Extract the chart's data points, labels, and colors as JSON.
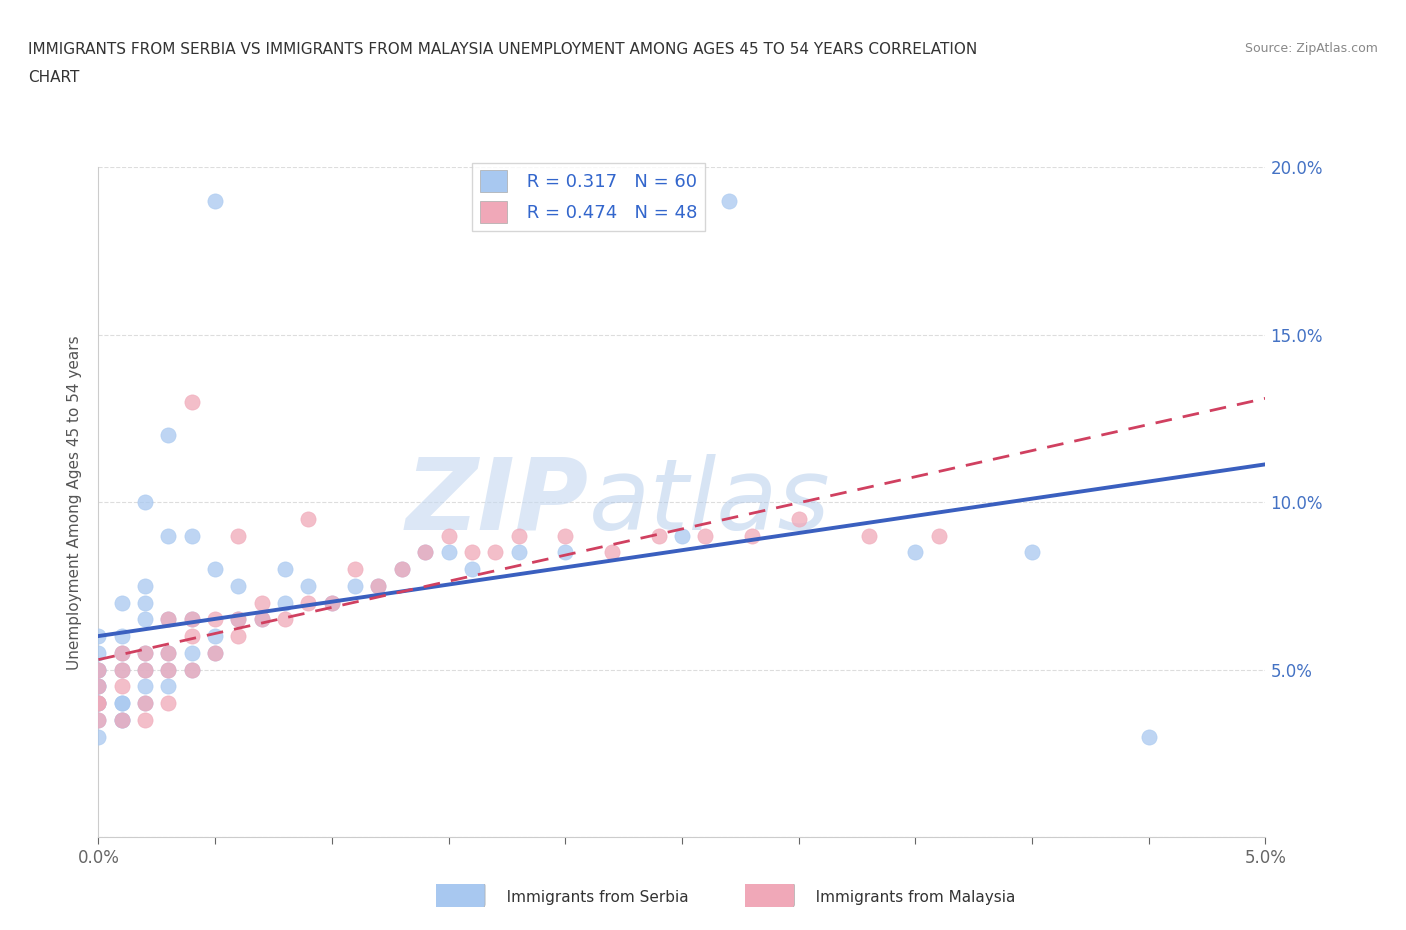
{
  "title_line1": "IMMIGRANTS FROM SERBIA VS IMMIGRANTS FROM MALAYSIA UNEMPLOYMENT AMONG AGES 45 TO 54 YEARS CORRELATION",
  "title_line2": "CHART",
  "source": "Source: ZipAtlas.com",
  "ylabel": "Unemployment Among Ages 45 to 54 years",
  "xlim": [
    0.0,
    0.05
  ],
  "ylim": [
    0.0,
    0.2
  ],
  "x_ticks": [
    0.0,
    0.005,
    0.01,
    0.015,
    0.02,
    0.025,
    0.03,
    0.035,
    0.04,
    0.045,
    0.05
  ],
  "x_tick_labels": [
    "0.0%",
    "",
    "",
    "",
    "",
    "",
    "",
    "",
    "",
    "",
    "5.0%"
  ],
  "y_ticks": [
    0.0,
    0.05,
    0.1,
    0.15,
    0.2
  ],
  "y_tick_labels": [
    "",
    "5.0%",
    "10.0%",
    "15.0%",
    "20.0%"
  ],
  "serbia_color": "#a8c8f0",
  "malaysia_color": "#f0a8b8",
  "serbia_line_color": "#3a5fbf",
  "malaysia_line_color": "#d04060",
  "legend_R_serbia": "R = 0.317",
  "legend_N_serbia": "N = 60",
  "legend_R_malaysia": "R = 0.474",
  "legend_N_malaysia": "N = 48",
  "watermark_zip": "ZIP",
  "watermark_atlas": "atlas",
  "serbia_x": [
    0.0,
    0.0,
    0.0,
    0.0,
    0.0,
    0.0,
    0.0,
    0.0,
    0.0,
    0.0,
    0.001,
    0.001,
    0.001,
    0.001,
    0.001,
    0.001,
    0.001,
    0.001,
    0.002,
    0.002,
    0.002,
    0.002,
    0.002,
    0.002,
    0.002,
    0.003,
    0.003,
    0.003,
    0.003,
    0.003,
    0.004,
    0.004,
    0.004,
    0.005,
    0.005,
    0.006,
    0.007,
    0.008,
    0.009,
    0.01,
    0.011,
    0.012,
    0.013,
    0.014,
    0.015,
    0.016,
    0.018,
    0.02,
    0.005,
    0.025,
    0.027,
    0.035,
    0.04,
    0.045,
    0.002,
    0.003,
    0.004,
    0.005,
    0.006,
    0.008
  ],
  "serbia_y": [
    0.04,
    0.045,
    0.05,
    0.055,
    0.04,
    0.035,
    0.05,
    0.03,
    0.045,
    0.06,
    0.035,
    0.04,
    0.05,
    0.055,
    0.06,
    0.07,
    0.04,
    0.035,
    0.04,
    0.05,
    0.055,
    0.065,
    0.07,
    0.045,
    0.075,
    0.045,
    0.05,
    0.055,
    0.065,
    0.09,
    0.05,
    0.055,
    0.065,
    0.055,
    0.06,
    0.065,
    0.065,
    0.07,
    0.075,
    0.07,
    0.075,
    0.075,
    0.08,
    0.085,
    0.085,
    0.08,
    0.085,
    0.085,
    0.19,
    0.09,
    0.19,
    0.085,
    0.085,
    0.03,
    0.1,
    0.12,
    0.09,
    0.08,
    0.075,
    0.08
  ],
  "malaysia_x": [
    0.0,
    0.0,
    0.0,
    0.0,
    0.0,
    0.001,
    0.001,
    0.001,
    0.001,
    0.002,
    0.002,
    0.002,
    0.002,
    0.003,
    0.003,
    0.003,
    0.003,
    0.004,
    0.004,
    0.004,
    0.005,
    0.005,
    0.006,
    0.006,
    0.007,
    0.007,
    0.008,
    0.009,
    0.01,
    0.011,
    0.012,
    0.013,
    0.014,
    0.015,
    0.016,
    0.017,
    0.018,
    0.02,
    0.022,
    0.024,
    0.026,
    0.028,
    0.03,
    0.033,
    0.036,
    0.004,
    0.006,
    0.009
  ],
  "malaysia_y": [
    0.04,
    0.05,
    0.045,
    0.035,
    0.04,
    0.035,
    0.045,
    0.05,
    0.055,
    0.035,
    0.04,
    0.05,
    0.055,
    0.04,
    0.05,
    0.055,
    0.065,
    0.05,
    0.06,
    0.065,
    0.055,
    0.065,
    0.06,
    0.065,
    0.065,
    0.07,
    0.065,
    0.07,
    0.07,
    0.08,
    0.075,
    0.08,
    0.085,
    0.09,
    0.085,
    0.085,
    0.09,
    0.09,
    0.085,
    0.09,
    0.09,
    0.09,
    0.095,
    0.09,
    0.09,
    0.13,
    0.09,
    0.095
  ]
}
